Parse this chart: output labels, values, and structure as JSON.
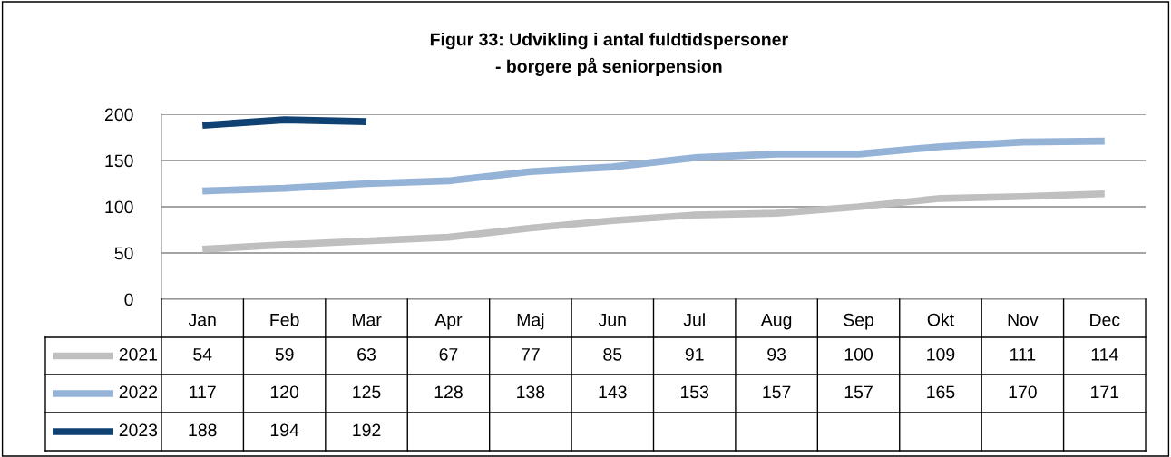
{
  "chart_data": {
    "type": "line",
    "title": "Figur 33: Udvikling i antal fuldtidspersoner\n- borgere på seniorpension",
    "categories": [
      "Jan",
      "Feb",
      "Mar",
      "Apr",
      "Maj",
      "Jun",
      "Jul",
      "Aug",
      "Sep",
      "Okt",
      "Nov",
      "Dec"
    ],
    "series": [
      {
        "name": "2021",
        "color": "#bfbfbf",
        "values": [
          54,
          59,
          63,
          67,
          77,
          85,
          91,
          93,
          100,
          109,
          111,
          114
        ]
      },
      {
        "name": "2022",
        "color": "#95b3d7",
        "values": [
          117,
          120,
          125,
          128,
          138,
          143,
          153,
          157,
          157,
          165,
          170,
          171
        ]
      },
      {
        "name": "2023",
        "color": "#0f4173",
        "values": [
          188,
          194,
          192,
          null,
          null,
          null,
          null,
          null,
          null,
          null,
          null,
          null
        ]
      }
    ],
    "ylim": [
      0,
      200
    ],
    "yticks": [
      0,
      50,
      100,
      150,
      200
    ],
    "grid": "y",
    "legend": "bottom",
    "data_labels": true,
    "marker": "none",
    "line_style": "solid"
  }
}
